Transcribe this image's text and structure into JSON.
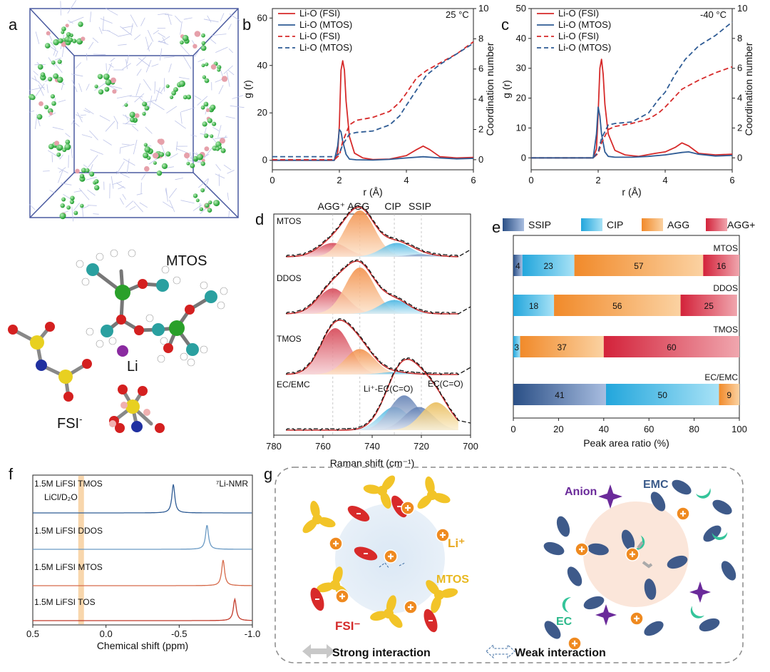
{
  "panels": {
    "a": {
      "label": "a",
      "mtos_label": "MTOS",
      "li_label": "Li",
      "fsi_label": "FSI",
      "fsi_sup": "-"
    },
    "b": {
      "label": "b",
      "temp": "25 °C"
    },
    "c": {
      "label": "c",
      "temp": "-40 °C"
    },
    "d": {
      "label": "d"
    },
    "e": {
      "label": "e"
    },
    "f": {
      "label": "f"
    },
    "g": {
      "label": "g"
    }
  },
  "colors": {
    "fsi": "#d62a2a",
    "mtos": "#2f5c95",
    "ssip": "#2f5c95",
    "cip": "#29a9dc",
    "agg": "#f49a3a",
    "aggp": "#d6263a"
  },
  "chart_data": [
    {
      "id": "b",
      "type": "line",
      "xlabel": "r (Å)",
      "ylabel": "g (r)",
      "y2label": "Coordination number",
      "xlim": [
        0,
        6
      ],
      "ylim": [
        -4,
        64
      ],
      "y2lim": [
        -0.667,
        10
      ],
      "xticks": [
        "0",
        "2",
        "4",
        "6"
      ],
      "yticks": [
        "0",
        "20",
        "40",
        "60"
      ],
      "y2ticks": [
        "0",
        "2",
        "4",
        "6",
        "8",
        "10"
      ],
      "series": [
        {
          "name": "Li-O (FSI)",
          "style": "solid",
          "axis": "left",
          "color": "#d62a2a",
          "x": [
            0,
            1.85,
            1.95,
            2.0,
            2.05,
            2.1,
            2.15,
            2.2,
            2.3,
            2.45,
            2.7,
            3.0,
            3.5,
            4.0,
            4.3,
            4.5,
            4.7,
            5.0,
            5.5,
            6.0
          ],
          "y": [
            0,
            0,
            3,
            15,
            38,
            42,
            38,
            25,
            10,
            3,
            1,
            0.3,
            0.5,
            2,
            4.5,
            6,
            4.5,
            1.5,
            1,
            1.2
          ]
        },
        {
          "name": "Li-O (MTOS)",
          "style": "solid",
          "axis": "left",
          "color": "#2f5c95",
          "x": [
            0,
            1.85,
            1.95,
            2.0,
            2.05,
            2.1,
            2.2,
            2.3,
            2.5,
            3.0,
            3.5,
            4.0,
            4.5,
            5.0,
            5.5,
            6.0
          ],
          "y": [
            0,
            0,
            6,
            13,
            12,
            8,
            2.5,
            0.5,
            0.2,
            0.1,
            0.4,
            1,
            1.5,
            1,
            0.6,
            0.8
          ]
        },
        {
          "name": "Li-O (FSI)",
          "style": "dashed",
          "axis": "right",
          "color": "#d62a2a",
          "x": [
            0,
            1.85,
            2.0,
            2.1,
            2.3,
            2.5,
            3.0,
            3.5,
            3.8,
            4.0,
            4.3,
            4.6,
            5.0,
            5.5,
            6.0
          ],
          "y": [
            0,
            0,
            0.3,
            1.2,
            2.3,
            2.6,
            2.8,
            3.2,
            3.8,
            4.4,
            5.4,
            5.9,
            6.4,
            7.0,
            7.8
          ]
        },
        {
          "name": "Li-O (MTOS)",
          "style": "dashed",
          "axis": "right",
          "color": "#2f5c95",
          "x": [
            0,
            1.85,
            2.0,
            2.1,
            2.3,
            2.5,
            3.0,
            3.5,
            3.8,
            4.0,
            4.3,
            4.6,
            5.0,
            5.5,
            6.0
          ],
          "y": [
            0.2,
            0.2,
            0.4,
            1.0,
            1.7,
            1.8,
            1.9,
            2.3,
            2.9,
            3.6,
            4.6,
            5.6,
            6.3,
            7.0,
            7.7
          ]
        }
      ]
    },
    {
      "id": "c",
      "type": "line",
      "xlabel": "r (Å)",
      "ylabel": "g (r)",
      "y2label": "Coordination number",
      "xlim": [
        0,
        6
      ],
      "ylim": [
        -4,
        50
      ],
      "y2lim": [
        -0.8,
        10
      ],
      "xticks": [
        "0",
        "2",
        "4",
        "6"
      ],
      "yticks": [
        "0",
        "10",
        "20",
        "30",
        "40",
        "50"
      ],
      "y2ticks": [
        "0",
        "2",
        "4",
        "6",
        "8",
        "10"
      ],
      "series": [
        {
          "name": "Li-O (FSI)",
          "style": "solid",
          "axis": "left",
          "color": "#d62a2a",
          "x": [
            0,
            1.85,
            1.95,
            2.0,
            2.05,
            2.1,
            2.15,
            2.2,
            2.3,
            2.5,
            2.8,
            3.2,
            3.7,
            4.0,
            4.3,
            4.5,
            4.7,
            5.0,
            5.5,
            6.0
          ],
          "y": [
            0,
            0,
            3,
            15,
            30,
            33,
            28,
            18,
            8,
            2.5,
            1,
            0.5,
            1.5,
            2,
            3.5,
            5,
            4,
            1.5,
            1,
            1.2
          ]
        },
        {
          "name": "Li-O (MTOS)",
          "style": "solid",
          "axis": "left",
          "color": "#2f5c95",
          "x": [
            0,
            1.85,
            1.95,
            2.0,
            2.05,
            2.1,
            2.2,
            2.3,
            2.5,
            3.0,
            3.5,
            4.0,
            4.5,
            4.7,
            5.0,
            5.5,
            6.0
          ],
          "y": [
            0,
            0,
            8,
            17,
            14,
            8,
            2,
            0.5,
            0.2,
            0.2,
            0.5,
            1,
            1.8,
            2,
            1.2,
            0.6,
            0.8
          ]
        },
        {
          "name": "Li-O (FSI)",
          "style": "dashed",
          "axis": "right",
          "color": "#d62a2a",
          "x": [
            0,
            1.85,
            2.0,
            2.1,
            2.3,
            2.5,
            3.0,
            3.5,
            3.8,
            4.0,
            4.5,
            5.0,
            5.5,
            6.0
          ],
          "y": [
            0,
            0,
            0.3,
            1.0,
            1.9,
            2.1,
            2.3,
            2.6,
            3.0,
            3.4,
            4.6,
            5.2,
            5.7,
            6.1
          ]
        },
        {
          "name": "Li-O (MTOS)",
          "style": "dashed",
          "axis": "right",
          "color": "#2f5c95",
          "x": [
            0,
            1.85,
            2.0,
            2.1,
            2.3,
            2.5,
            3.0,
            3.5,
            3.8,
            4.0,
            4.3,
            4.6,
            5.0,
            5.5,
            6.0
          ],
          "y": [
            0,
            0,
            0.4,
            1.3,
            2.2,
            2.3,
            2.4,
            3.0,
            3.9,
            4.4,
            5.6,
            6.6,
            7.5,
            8.2,
            9.1
          ]
        }
      ]
    },
    {
      "id": "d",
      "type": "area",
      "xlabel": "Raman shift (cm⁻¹)",
      "xlim": [
        780,
        700
      ],
      "xticks": [
        "780",
        "760",
        "740",
        "720",
        "700"
      ],
      "top_labels": [
        "AGG⁺",
        "AGG",
        "CIP",
        "SSIP"
      ],
      "reference_lines": [
        756,
        745,
        731,
        720
      ],
      "samples": [
        {
          "name": "MTOS",
          "peaks": [
            {
              "center": 756,
              "height": 0.3,
              "type": "AGG+"
            },
            {
              "center": 745,
              "height": 1.0,
              "type": "AGG"
            },
            {
              "center": 730,
              "height": 0.3,
              "type": "CIP"
            },
            {
              "center": 720,
              "height": 0.05,
              "type": "SSIP"
            }
          ]
        },
        {
          "name": "DDOS",
          "peaks": [
            {
              "center": 756,
              "height": 0.55,
              "type": "AGG+"
            },
            {
              "center": 745,
              "height": 1.0,
              "type": "AGG"
            },
            {
              "center": 731,
              "height": 0.3,
              "type": "CIP"
            }
          ]
        },
        {
          "name": "TMOS",
          "peaks": [
            {
              "center": 755,
              "height": 1.0,
              "type": "AGG+"
            },
            {
              "center": 745,
              "height": 0.55,
              "type": "AGG"
            },
            {
              "center": 731,
              "height": 0.05,
              "type": "CIP"
            }
          ]
        },
        {
          "name": "EC/EMC",
          "peaks": [
            {
              "center": 731,
              "height": 0.5,
              "type": "CIP"
            },
            {
              "center": 727,
              "height": 0.75,
              "type": "Li⁺-EC(C=O)"
            },
            {
              "center": 721,
              "height": 0.5,
              "type": "SSIP"
            },
            {
              "center": 714,
              "height": 0.6,
              "type": "EC(C=O)"
            }
          ]
        }
      ],
      "annotations": [
        "Li⁺-EC(C=O)",
        "EC(C=O)"
      ]
    },
    {
      "id": "e",
      "type": "bar",
      "orientation": "horizontal",
      "stacked": true,
      "xlabel": "Peak area ratio (%)",
      "xlim": [
        0,
        100
      ],
      "xticks": [
        "0",
        "20",
        "40",
        "60",
        "80",
        "100"
      ],
      "legend": [
        "SSIP",
        "CIP",
        "AGG",
        "AGG+"
      ],
      "categories": [
        "MTOS",
        "DDOS",
        "TMOS",
        "EC/EMC"
      ],
      "series": [
        {
          "name": "SSIP",
          "values": [
            4,
            0,
            0,
            41
          ],
          "labels": [
            "4",
            "",
            "",
            "41"
          ]
        },
        {
          "name": "CIP",
          "values": [
            23,
            18,
            3,
            50
          ],
          "labels": [
            "23",
            "18",
            "3",
            "50"
          ]
        },
        {
          "name": "AGG",
          "values": [
            57,
            56,
            37,
            9
          ],
          "labels": [
            "57",
            "56",
            "37",
            "9"
          ]
        },
        {
          "name": "AGG+",
          "values": [
            16,
            25,
            60,
            0
          ],
          "labels": [
            "16",
            "25",
            "60",
            ""
          ]
        }
      ]
    },
    {
      "id": "f",
      "type": "line",
      "xlabel": "Chemical shift (ppm)",
      "xlim": [
        0.5,
        -1.0
      ],
      "xticks": [
        "0.5",
        "0.0",
        "-0.5",
        "-1.0"
      ],
      "nmr_label": "⁷Li-NMR",
      "reference": {
        "label": "LiCl/D₂O",
        "x": 0.17
      },
      "series": [
        {
          "name": "1.5M LiFSI TMOS",
          "peak": -0.46,
          "color": "#2f5c95"
        },
        {
          "name": "1.5M LiFSI DDOS",
          "peak": -0.69,
          "color": "#6a9ac4"
        },
        {
          "name": "1.5M LiFSI MTOS",
          "peak": -0.8,
          "color": "#d66a4a"
        },
        {
          "name": "1.5M LiFSI TOS",
          "peak": -0.88,
          "color": "#c23a2a"
        }
      ]
    }
  ],
  "schematic": {
    "left_labels": {
      "li": "Li⁺",
      "mtos": "MTOS",
      "fsi": "FSI⁻"
    },
    "right_labels": {
      "anion": "Anion",
      "emc": "EMC",
      "ec": "EC"
    },
    "legend": {
      "strong": "Strong interaction",
      "weak": "Weak interaction"
    }
  }
}
